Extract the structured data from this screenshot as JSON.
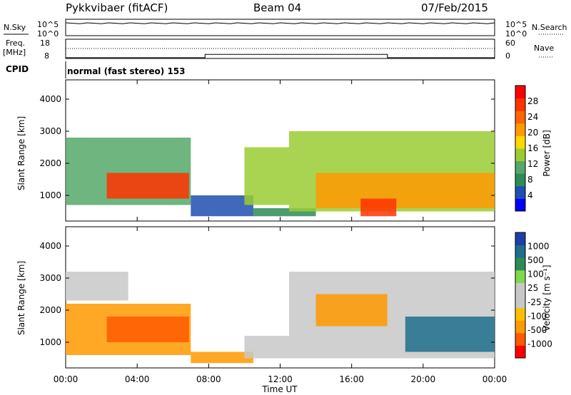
{
  "header": {
    "station": "Pykkvibaer (fitACF)",
    "beam": "Beam 04",
    "date": "07/Feb/2015"
  },
  "nsky_panel": {
    "left_label": "N.Sky",
    "right_label": "N.Search",
    "left_ticks": [
      "10^5",
      "10^0"
    ],
    "right_ticks": [
      "10^5",
      "10^0"
    ]
  },
  "freq_panel": {
    "left_label_1": "Freq.",
    "left_label_2": "[MHz]",
    "left_ticks": [
      "18",
      "8"
    ],
    "right_label": "Nave",
    "right_ticks": [
      "60",
      "0"
    ],
    "steps": [
      [
        0,
        8.6
      ],
      [
        7.8,
        11.2
      ],
      [
        18.0,
        8.6
      ],
      [
        24.0,
        8.6
      ]
    ]
  },
  "cpid": {
    "label": "CPID",
    "text": "normal (fast stereo) 153"
  },
  "colors": {
    "power_scale": [
      "#0000ff",
      "#1f4fb0",
      "#2e8b57",
      "#55a868",
      "#9acd32",
      "#ffd700",
      "#ff9900",
      "#ff6600",
      "#ff3300",
      "#ff0000"
    ],
    "velocity_scale": [
      "#ff0000",
      "#ff5a00",
      "#ff9900",
      "#ffbf00",
      "#c8c8c8",
      "#c8c8c8",
      "#7fd94c",
      "#2e8b57",
      "#1e6e8c",
      "#1f3fa8"
    ]
  },
  "chart_data": [
    {
      "type": "heatmap",
      "name": "power",
      "ylabel": "Slant Range [km]",
      "yticks": [
        1000,
        2000,
        3000,
        4000
      ],
      "ylim": [
        200,
        4600
      ],
      "xlim": [
        0,
        24
      ],
      "colorbar_label": "Power [dB]",
      "colorbar_ticks": [
        4,
        8,
        12,
        16,
        20,
        24,
        28
      ],
      "colorbar_range": [
        0,
        32
      ],
      "regions": [
        {
          "x0": 0.0,
          "x1": 7.0,
          "y0": 700,
          "y1": 2800,
          "value": 10
        },
        {
          "x0": 2.3,
          "x1": 6.9,
          "y0": 900,
          "y1": 1700,
          "value": 27
        },
        {
          "x0": 7.0,
          "x1": 10.5,
          "y0": 350,
          "y1": 1000,
          "value": 6
        },
        {
          "x0": 10.0,
          "x1": 12.5,
          "y0": 700,
          "y1": 2500,
          "value": 14
        },
        {
          "x0": 10.5,
          "x1": 14.0,
          "y0": 350,
          "y1": 600,
          "value": 8
        },
        {
          "x0": 12.5,
          "x1": 24.0,
          "y0": 500,
          "y1": 3000,
          "value": 13
        },
        {
          "x0": 14.0,
          "x1": 24.0,
          "y0": 600,
          "y1": 1700,
          "value": 22
        },
        {
          "x0": 16.5,
          "x1": 18.5,
          "y0": 350,
          "y1": 900,
          "value": 26
        }
      ]
    },
    {
      "type": "heatmap",
      "name": "velocity",
      "ylabel": "Slant Range [km]",
      "yticks": [
        1000,
        2000,
        3000,
        4000
      ],
      "ylim": [
        200,
        4600
      ],
      "xlim": [
        0,
        24
      ],
      "xlabel": "Time UT",
      "xticks": [
        "00:00",
        "04:00",
        "08:00",
        "12:00",
        "16:00",
        "20:00",
        "00:00"
      ],
      "colorbar_label": "Velocity [m s⁻¹]",
      "colorbar_ticks": [
        "1000",
        "500",
        "100",
        "25",
        "-25",
        "-100",
        "-500",
        "-1000"
      ],
      "regions": [
        {
          "x0": 0.0,
          "x1": 3.5,
          "y0": 2300,
          "y1": 3200,
          "value": 0
        },
        {
          "x0": 0.0,
          "x1": 7.0,
          "y0": 600,
          "y1": 2200,
          "value": -200
        },
        {
          "x0": 2.3,
          "x1": 6.9,
          "y0": 1000,
          "y1": 1800,
          "value": -600
        },
        {
          "x0": 7.0,
          "x1": 10.5,
          "y0": 350,
          "y1": 700,
          "value": -150
        },
        {
          "x0": 10.0,
          "x1": 24.0,
          "y0": 500,
          "y1": 1200,
          "value": 0
        },
        {
          "x0": 12.5,
          "x1": 24.0,
          "y0": 1200,
          "y1": 3200,
          "value": 20
        },
        {
          "x0": 14.0,
          "x1": 18.0,
          "y0": 1500,
          "y1": 2500,
          "value": -300
        },
        {
          "x0": 19.0,
          "x1": 24.0,
          "y0": 700,
          "y1": 1800,
          "value": 600
        }
      ]
    }
  ]
}
